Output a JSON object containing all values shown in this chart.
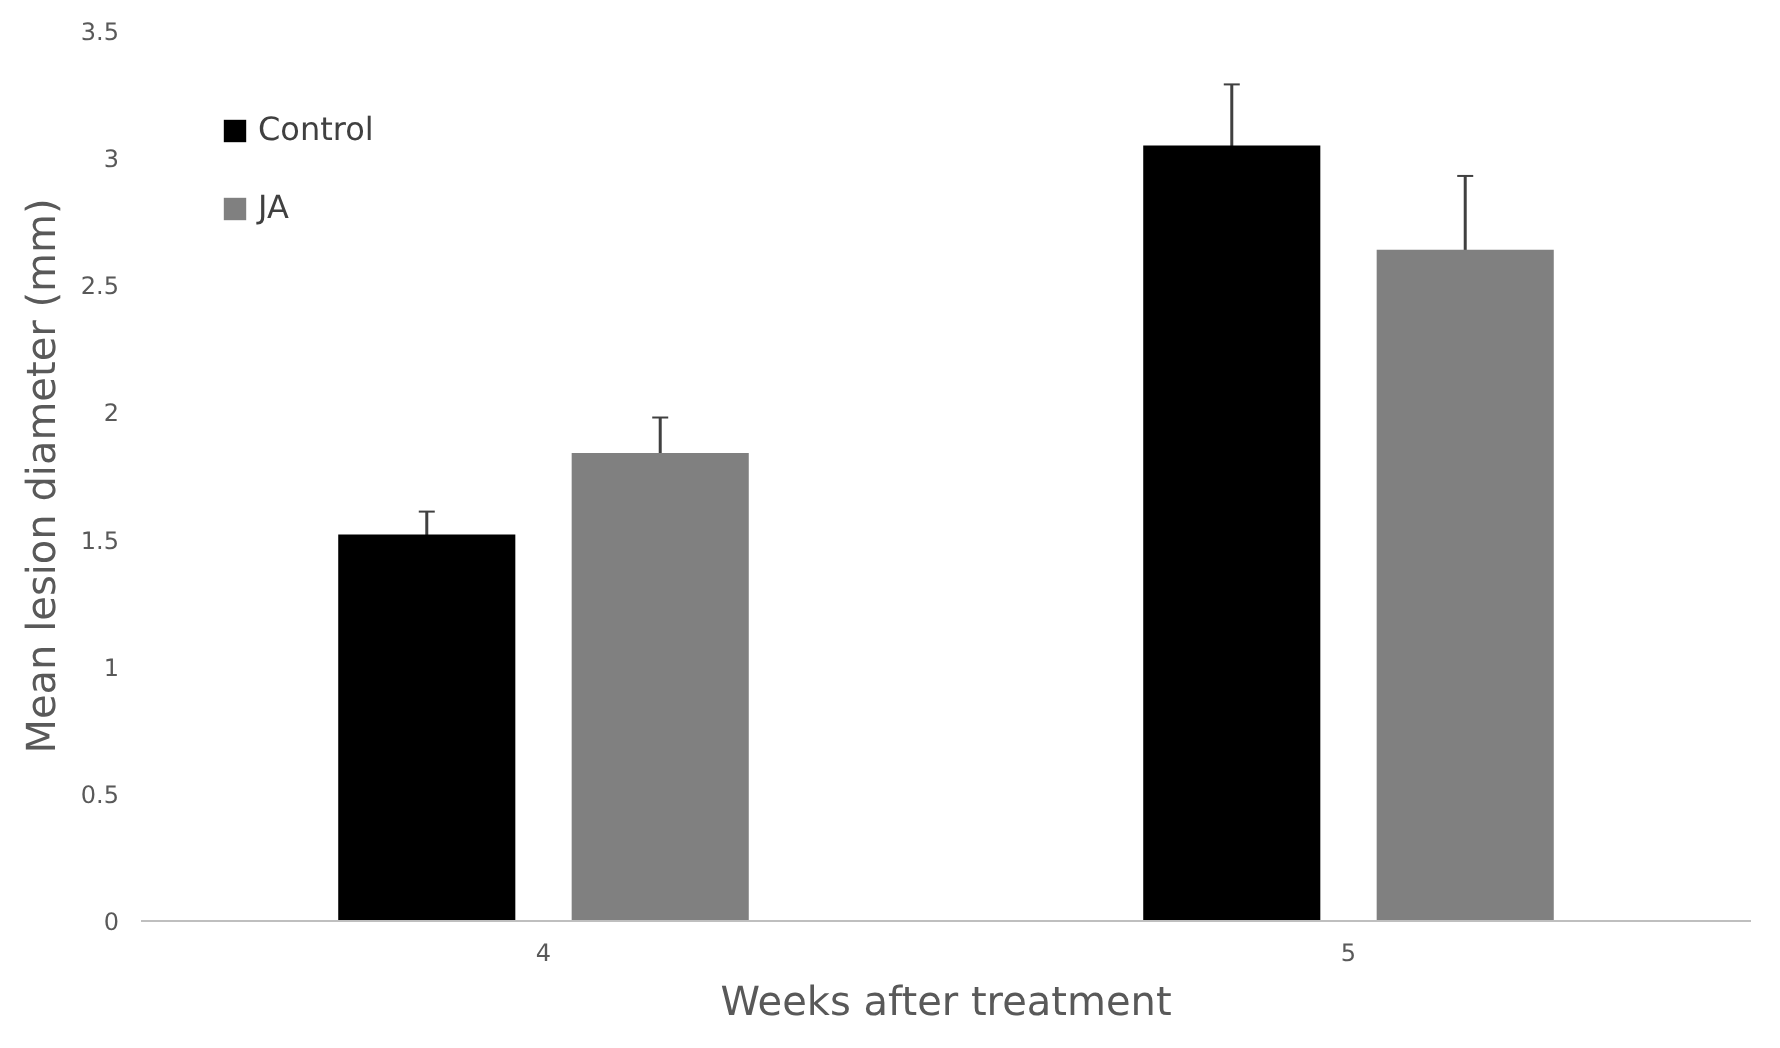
{
  "chart_data": {
    "type": "bar",
    "xlabel": "Weeks after treatment",
    "ylabel": "Mean lesion diameter (mm)",
    "categories": [
      "4",
      "5"
    ],
    "series": [
      {
        "name": "Control",
        "color": "#000000",
        "values": [
          1.52,
          3.05
        ],
        "errors": [
          0.09,
          0.24
        ]
      },
      {
        "name": "JA",
        "color": "#808080",
        "values": [
          1.84,
          2.64
        ],
        "errors": [
          0.14,
          0.29
        ]
      }
    ],
    "ylim": [
      0,
      3.5
    ],
    "yticks": [
      0,
      0.5,
      1,
      1.5,
      2,
      2.5,
      3,
      3.5
    ],
    "grid": false,
    "legend": "top left"
  }
}
